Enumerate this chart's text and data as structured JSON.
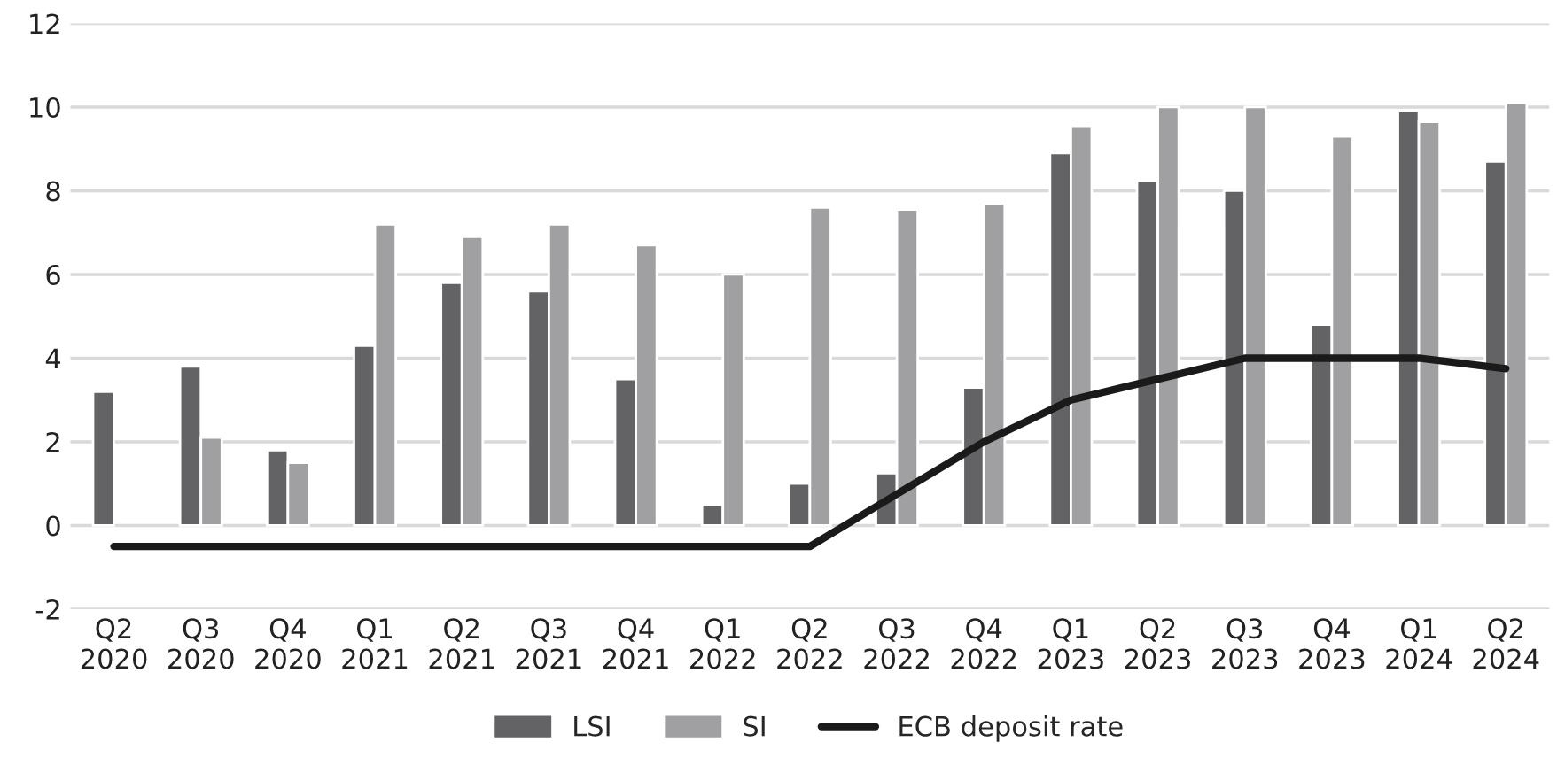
{
  "chart_data": {
    "type": "bar",
    "categories": [
      "Q2\n2020",
      "Q3\n2020",
      "Q4\n2020",
      "Q1\n2021",
      "Q2\n2021",
      "Q3\n2021",
      "Q4\n2021",
      "Q1\n2022",
      "Q2\n2022",
      "Q3\n2022",
      "Q4\n2022",
      "Q1\n2023",
      "Q2\n2023",
      "Q3\n2023",
      "Q4\n2023",
      "Q1\n2024",
      "Q2\n2024"
    ],
    "series": [
      {
        "name": "LSI",
        "color": "#636366",
        "values": [
          3.2,
          3.8,
          1.8,
          4.3,
          5.8,
          5.6,
          3.5,
          0.5,
          1.0,
          1.25,
          3.3,
          8.9,
          8.25,
          8.0,
          4.8,
          9.9,
          8.7
        ]
      },
      {
        "name": "SI",
        "color": "#a0a0a3",
        "values": [
          null,
          2.1,
          1.5,
          7.2,
          6.9,
          7.2,
          6.7,
          6.0,
          7.6,
          7.55,
          7.7,
          9.55,
          10.0,
          10.0,
          9.3,
          9.65,
          10.1
        ]
      },
      {
        "name": "ECB deposit rate",
        "type": "line",
        "color": "#1a1a1a",
        "values": [
          -0.5,
          -0.5,
          -0.5,
          -0.5,
          -0.5,
          -0.5,
          -0.5,
          -0.5,
          -0.5,
          0.75,
          2.0,
          3.0,
          3.5,
          4.0,
          4.0,
          4.0,
          3.75
        ]
      }
    ],
    "ylim": [
      -2,
      12
    ],
    "yticks": [
      -2,
      0,
      2,
      4,
      6,
      8,
      10,
      12
    ],
    "grid": "y",
    "legend": "bottom",
    "marker": "none",
    "line_style": "solid"
  }
}
